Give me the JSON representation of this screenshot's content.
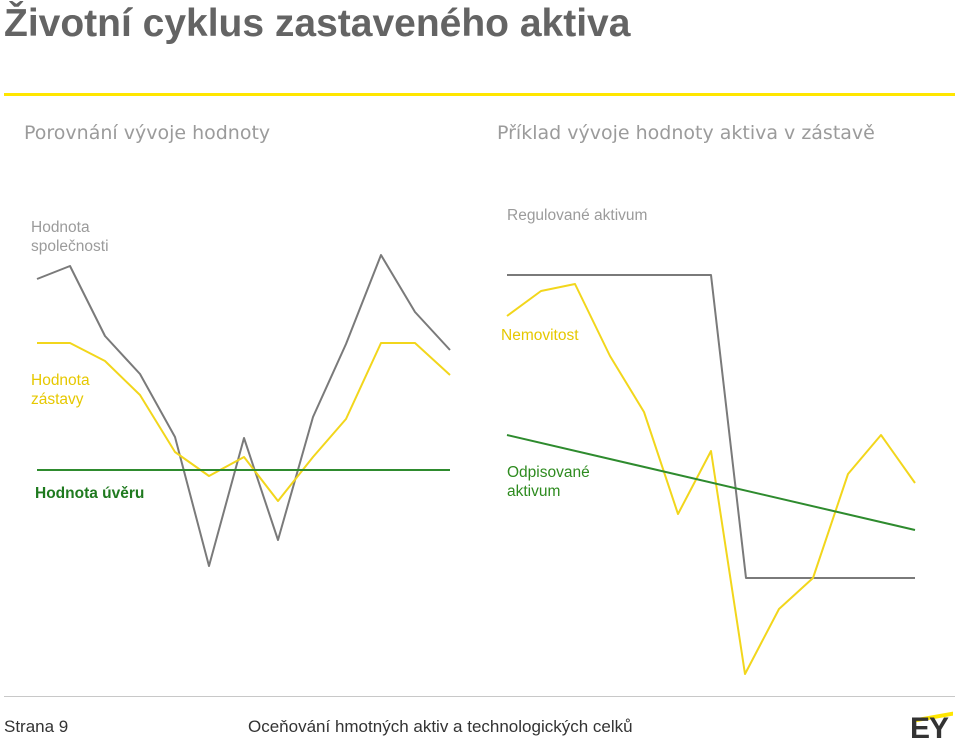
{
  "slide": {
    "title": "Životní cyklus zastaveného aktiva"
  },
  "left_panel": {
    "heading": "Porovnání vývoje hodnoty",
    "label_company_value": "Hodnota společnosti",
    "label_collateral_value": "Hodnota zástavy",
    "label_loan_value": "Hodnota úvěru"
  },
  "right_panel": {
    "heading": "Příklad vývoje hodnoty aktiva v zástavě",
    "label_regulated_asset": "Regulované aktivum",
    "label_real_estate": "Nemovitost",
    "label_depreciated_asset": "Odpisované aktivum"
  },
  "colors": {
    "gray_line": "#7a7a7a",
    "yellow_line": "#f2d61c",
    "green_line": "#2e8b2e",
    "accent": "#ffe600"
  },
  "footer": {
    "page": "Strana 9",
    "text": "Oceňování hmotných aktiv a technologických celků",
    "logo": "EY"
  }
}
